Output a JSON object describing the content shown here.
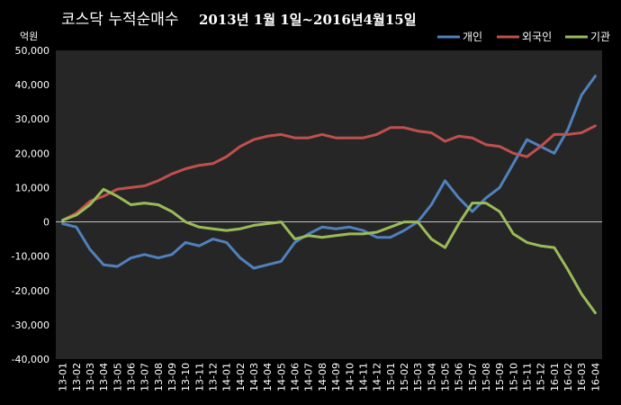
{
  "chart_data": {
    "type": "line",
    "title": "코스닥  누적순매수",
    "subtitle": "2013년 1월 1일~2016년4월15일",
    "ylabel": "억원",
    "ylim": [
      -40000,
      50000
    ],
    "yticks": [
      50000,
      40000,
      30000,
      20000,
      10000,
      0,
      -10000,
      -20000,
      -30000,
      -40000
    ],
    "ytick_labels": [
      "50,000",
      "40,000",
      "30,000",
      "20,000",
      "10,000",
      "0",
      "-10,000",
      "-20,000",
      "-30,000",
      "-40,000"
    ],
    "categories": [
      "13-01",
      "13-02",
      "13-03",
      "13-04",
      "13-05",
      "13-06",
      "13-07",
      "13-08",
      "13-09",
      "13-10",
      "13-11",
      "13-12",
      "14-01",
      "14-02",
      "14-03",
      "14-04",
      "14-05",
      "14-06",
      "14-07",
      "14-08",
      "14-09",
      "14-10",
      "14-11",
      "14-12",
      "15-01",
      "15-02",
      "15-03",
      "15-04",
      "15-05",
      "15-06",
      "15-07",
      "15-08",
      "15-09",
      "15-10",
      "15-11",
      "15-12",
      "16-01",
      "16-02",
      "16-03",
      "16-04"
    ],
    "legend_position": "top-right",
    "grid": false,
    "series": [
      {
        "name": "개인",
        "color": "#4f81bd",
        "values": [
          -500,
          -1500,
          -8000,
          -12500,
          -13000,
          -10500,
          -9500,
          -10500,
          -9500,
          -6000,
          -7000,
          -5000,
          -6000,
          -10500,
          -13500,
          -12500,
          -11500,
          -6000,
          -3500,
          -1500,
          -2000,
          -1500,
          -2500,
          -4500,
          -4500,
          -2500,
          0,
          5000,
          12000,
          7000,
          3000,
          7000,
          10000,
          17000,
          24000,
          22000,
          20000,
          27000,
          37000,
          42500
        ]
      },
      {
        "name": "외국인",
        "color": "#c0504d",
        "values": [
          500,
          2500,
          6000,
          7500,
          9500,
          10000,
          10500,
          12000,
          14000,
          15500,
          16500,
          17000,
          19000,
          22000,
          24000,
          25000,
          25500,
          24500,
          24500,
          25500,
          24500,
          24500,
          24500,
          25500,
          27500,
          27500,
          26500,
          26000,
          23500,
          25000,
          24500,
          22500,
          22000,
          20000,
          19000,
          22000,
          25500,
          25500,
          26000,
          28000
        ]
      },
      {
        "name": "기관",
        "color": "#9bbb59",
        "values": [
          500,
          2000,
          5000,
          9500,
          7500,
          5000,
          5500,
          5000,
          3000,
          0,
          -1500,
          -2000,
          -2500,
          -2000,
          -1000,
          -500,
          0,
          -5000,
          -4000,
          -4500,
          -4000,
          -3500,
          -3500,
          -3000,
          -1500,
          0,
          0,
          -5000,
          -7500,
          -500,
          5500,
          5500,
          3000,
          -3500,
          -6000,
          -7000,
          -7500,
          -14000,
          -21000,
          -26500
        ]
      }
    ]
  }
}
